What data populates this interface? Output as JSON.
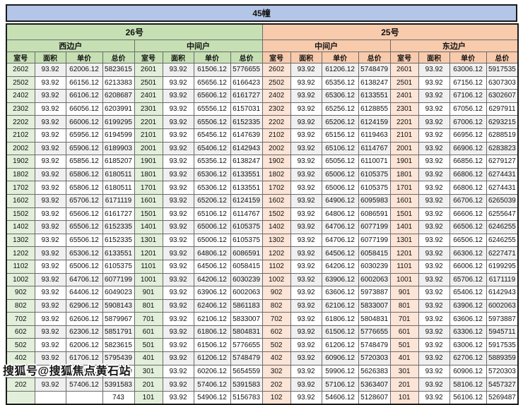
{
  "page": {
    "title": "45幢"
  },
  "watermark": {
    "text": "搜狐号@搜狐焦点黄石站"
  },
  "colors": {
    "title_bg": "#b4c6e7",
    "building_26_bg": "#c6e0b4",
    "building_26_room_bg": "#e2efda",
    "building_25_bg": "#f8cbad",
    "building_25_room_bg": "#fce4d6",
    "row_stripe": "#f0f0f0"
  },
  "table": {
    "column_headers": [
      "室号",
      "面积",
      "单价",
      "总价"
    ],
    "buildings": [
      {
        "label": "26号",
        "units": [
          {
            "label": "西边户",
            "rows": [
              [
                "2602",
                "93.92",
                "62006.12",
                "5823615"
              ],
              [
                "2502",
                "93.92",
                "66156.12",
                "6213383"
              ],
              [
                "2402",
                "93.92",
                "66106.12",
                "6208687"
              ],
              [
                "2302",
                "93.92",
                "66056.12",
                "6203991"
              ],
              [
                "2202",
                "93.92",
                "66006.12",
                "6199295"
              ],
              [
                "2102",
                "93.92",
                "65956.12",
                "6194599"
              ],
              [
                "2002",
                "93.92",
                "65906.12",
                "6189903"
              ],
              [
                "1902",
                "93.92",
                "65856.12",
                "6185207"
              ],
              [
                "1802",
                "93.92",
                "65806.12",
                "6180511"
              ],
              [
                "1702",
                "93.92",
                "65806.12",
                "6180511"
              ],
              [
                "1602",
                "93.92",
                "65706.12",
                "6171119"
              ],
              [
                "1502",
                "93.92",
                "65606.12",
                "6161727"
              ],
              [
                "1402",
                "93.92",
                "65506.12",
                "6152335"
              ],
              [
                "1302",
                "93.92",
                "65506.12",
                "6152335"
              ],
              [
                "1202",
                "93.92",
                "65306.12",
                "6133551"
              ],
              [
                "1102",
                "93.92",
                "65006.12",
                "6105375"
              ],
              [
                "1002",
                "93.92",
                "64706.12",
                "6077199"
              ],
              [
                "902",
                "93.92",
                "64406.12",
                "6049023"
              ],
              [
                "802",
                "93.92",
                "62906.12",
                "5908143"
              ],
              [
                "702",
                "93.92",
                "62606.12",
                "5879967"
              ],
              [
                "602",
                "93.92",
                "62306.12",
                "5851791"
              ],
              [
                "502",
                "93.92",
                "62006.12",
                "5823615"
              ],
              [
                "402",
                "93.92",
                "61706.12",
                "5795439"
              ],
              [
                "302",
                "93.92",
                "60206.12",
                "5654559"
              ],
              [
                "202",
                "93.92",
                "57406.12",
                "5391583"
              ],
              [
                "",
                "",
                "",
                "743"
              ]
            ]
          },
          {
            "label": "中间户",
            "rows": [
              [
                "2601",
                "93.92",
                "61506.12",
                "5776655"
              ],
              [
                "2501",
                "93.92",
                "65656.12",
                "6166423"
              ],
              [
                "2401",
                "93.92",
                "65606.12",
                "6161727"
              ],
              [
                "2301",
                "93.92",
                "65556.12",
                "6157031"
              ],
              [
                "2201",
                "93.92",
                "65506.12",
                "6152335"
              ],
              [
                "2101",
                "93.92",
                "65456.12",
                "6147639"
              ],
              [
                "2001",
                "93.92",
                "65406.12",
                "6142943"
              ],
              [
                "1901",
                "93.92",
                "65356.12",
                "6138247"
              ],
              [
                "1801",
                "93.92",
                "65306.12",
                "6133551"
              ],
              [
                "1701",
                "93.92",
                "65306.12",
                "6133551"
              ],
              [
                "1601",
                "93.92",
                "65206.12",
                "6124159"
              ],
              [
                "1501",
                "93.92",
                "65106.12",
                "6114767"
              ],
              [
                "1401",
                "93.92",
                "65006.12",
                "6105375"
              ],
              [
                "1301",
                "93.92",
                "65006.12",
                "6105375"
              ],
              [
                "1201",
                "93.92",
                "64806.12",
                "6086591"
              ],
              [
                "1101",
                "93.92",
                "64506.12",
                "6058415"
              ],
              [
                "1001",
                "93.92",
                "64206.12",
                "6030239"
              ],
              [
                "901",
                "93.92",
                "63906.12",
                "6002063"
              ],
              [
                "801",
                "93.92",
                "62406.12",
                "5861183"
              ],
              [
                "701",
                "93.92",
                "62106.12",
                "5833007"
              ],
              [
                "601",
                "93.92",
                "61806.12",
                "5804831"
              ],
              [
                "501",
                "93.92",
                "61506.12",
                "5776655"
              ],
              [
                "401",
                "93.92",
                "61206.12",
                "5748479"
              ],
              [
                "301",
                "93.92",
                "60206.12",
                "5654559"
              ],
              [
                "201",
                "93.92",
                "57406.12",
                "5391583"
              ],
              [
                "101",
                "93.92",
                "54906.12",
                "5156783"
              ]
            ]
          }
        ]
      },
      {
        "label": "25号",
        "units": [
          {
            "label": "中间户",
            "rows": [
              [
                "2602",
                "93.92",
                "61206.12",
                "5748479"
              ],
              [
                "2502",
                "93.92",
                "65356.12",
                "6138247"
              ],
              [
                "2402",
                "93.92",
                "65306.12",
                "6133551"
              ],
              [
                "2302",
                "93.92",
                "65256.12",
                "6128855"
              ],
              [
                "2202",
                "93.92",
                "65206.12",
                "6124159"
              ],
              [
                "2102",
                "93.92",
                "65156.12",
                "6119463"
              ],
              [
                "2002",
                "93.92",
                "65106.12",
                "6114767"
              ],
              [
                "1902",
                "93.92",
                "65056.12",
                "6110071"
              ],
              [
                "1802",
                "93.92",
                "65006.12",
                "6105375"
              ],
              [
                "1702",
                "93.92",
                "65006.12",
                "6105375"
              ],
              [
                "1602",
                "93.92",
                "64906.12",
                "6095983"
              ],
              [
                "1502",
                "93.92",
                "64806.12",
                "6086591"
              ],
              [
                "1402",
                "93.92",
                "64706.12",
                "6077199"
              ],
              [
                "1302",
                "93.92",
                "64706.12",
                "6077199"
              ],
              [
                "1202",
                "93.92",
                "64506.12",
                "6058415"
              ],
              [
                "1102",
                "93.92",
                "64206.12",
                "6030239"
              ],
              [
                "1002",
                "93.92",
                "63906.12",
                "6002063"
              ],
              [
                "902",
                "93.92",
                "63606.12",
                "5973887"
              ],
              [
                "802",
                "93.92",
                "62106.12",
                "5833007"
              ],
              [
                "702",
                "93.92",
                "61806.12",
                "5804831"
              ],
              [
                "602",
                "93.92",
                "61506.12",
                "5776655"
              ],
              [
                "502",
                "93.92",
                "61206.12",
                "5748479"
              ],
              [
                "402",
                "93.92",
                "60906.12",
                "5720303"
              ],
              [
                "302",
                "93.92",
                "59906.12",
                "5626383"
              ],
              [
                "202",
                "93.92",
                "57106.12",
                "5363407"
              ],
              [
                "102",
                "93.92",
                "54606.12",
                "5128607"
              ]
            ]
          },
          {
            "label": "东边户",
            "rows": [
              [
                "2601",
                "93.92",
                "63006.12",
                "5917535"
              ],
              [
                "2501",
                "93.92",
                "67156.12",
                "6307303"
              ],
              [
                "2401",
                "93.92",
                "67106.12",
                "6302607"
              ],
              [
                "2301",
                "93.92",
                "67056.12",
                "6297911"
              ],
              [
                "2201",
                "93.92",
                "67006.12",
                "6293215"
              ],
              [
                "2101",
                "93.92",
                "66956.12",
                "6288519"
              ],
              [
                "2001",
                "93.92",
                "66906.12",
                "6283823"
              ],
              [
                "1901",
                "93.92",
                "66856.12",
                "6279127"
              ],
              [
                "1801",
                "93.92",
                "66806.12",
                "6274431"
              ],
              [
                "1701",
                "93.92",
                "66806.12",
                "6274431"
              ],
              [
                "1601",
                "93.92",
                "66706.12",
                "6265039"
              ],
              [
                "1501",
                "93.92",
                "66606.12",
                "6255647"
              ],
              [
                "1401",
                "93.92",
                "66506.12",
                "6246255"
              ],
              [
                "1301",
                "93.92",
                "66506.12",
                "6246255"
              ],
              [
                "1201",
                "93.92",
                "66306.12",
                "6227471"
              ],
              [
                "1101",
                "93.92",
                "66006.12",
                "6199295"
              ],
              [
                "1001",
                "93.92",
                "65706.12",
                "6171119"
              ],
              [
                "901",
                "93.92",
                "65406.12",
                "6142943"
              ],
              [
                "801",
                "93.92",
                "63906.12",
                "6002063"
              ],
              [
                "701",
                "93.92",
                "63606.12",
                "5973887"
              ],
              [
                "601",
                "93.92",
                "63306.12",
                "5945711"
              ],
              [
                "501",
                "93.92",
                "63006.12",
                "5917535"
              ],
              [
                "401",
                "93.92",
                "62706.12",
                "5889359"
              ],
              [
                "301",
                "93.92",
                "60906.12",
                "5720303"
              ],
              [
                "201",
                "93.92",
                "58106.12",
                "5457327"
              ],
              [
                "101",
                "93.92",
                "56106.12",
                "5269487"
              ]
            ]
          }
        ]
      }
    ]
  }
}
